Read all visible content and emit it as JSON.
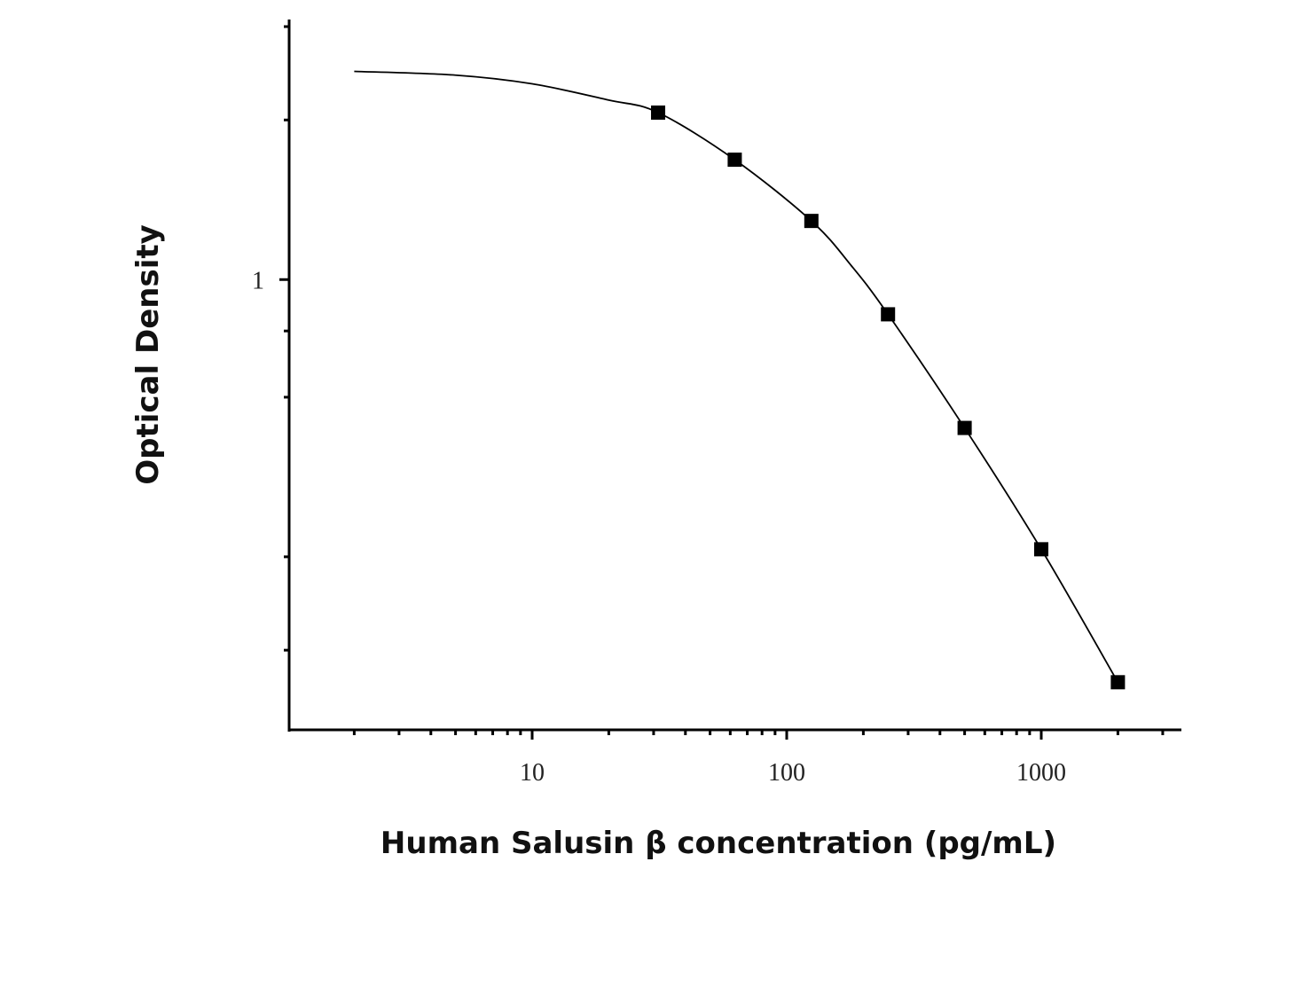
{
  "chart_data": {
    "type": "scatter",
    "x_label": "Human Salusin β concentration (pg/mL)",
    "y_label": "Optical  Density",
    "x": [
      31.25,
      62.5,
      125,
      250,
      500,
      1000,
      2000
    ],
    "series": [
      {
        "color": "#000000",
        "values": [
          2.065,
          1.683,
          1.29,
          0.86,
          0.525,
          0.31,
          0.174
        ]
      }
    ],
    "fit": {
      "color": "#000000",
      "x": [
        2,
        5,
        10,
        20,
        31.25,
        62.5,
        125,
        180,
        250,
        500,
        1000,
        2000
      ],
      "values": [
        2.47,
        2.43,
        2.34,
        2.18,
        2.065,
        1.683,
        1.29,
        1.06,
        0.86,
        0.525,
        0.31,
        0.174
      ]
    },
    "xscale": "log",
    "yscale": "log",
    "xlim": [
      1.11,
      3524
    ],
    "ylim": [
      0.1415,
      3
    ],
    "xticks": [
      10,
      100,
      1000
    ],
    "xminor": [
      2,
      3,
      4,
      5,
      6,
      7,
      8,
      9,
      20,
      30,
      40,
      50,
      60,
      70,
      80,
      90,
      200,
      300,
      400,
      500,
      600,
      700,
      800,
      900,
      2000,
      3000
    ],
    "yticks": [
      1
    ],
    "yminor": [
      0.2,
      0.3,
      0.6,
      0.8,
      2,
      3
    ]
  }
}
